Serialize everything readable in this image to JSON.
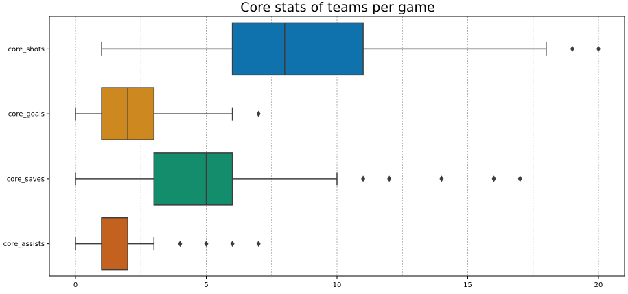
{
  "chart_data": {
    "type": "box",
    "orientation": "horizontal",
    "title": "Core stats of teams per game",
    "xlabel": "",
    "ylabel": "",
    "xlim": [
      -1,
      21
    ],
    "x_ticks": [
      0,
      5,
      10,
      15,
      20
    ],
    "x_tick_labels": [
      "0",
      "5",
      "10",
      "15",
      "20"
    ],
    "vertical_gridlines_at": [
      0,
      2.5,
      5,
      7.5,
      10,
      12.5,
      15,
      17.5,
      20
    ],
    "grid": "dotted vertical",
    "categories": [
      "core_shots",
      "core_goals",
      "core_saves",
      "core_assists"
    ],
    "series": [
      {
        "category": "core_shots",
        "color": "#0f72ad",
        "whisker_low": 1,
        "q1": 6,
        "median": 8,
        "q3": 11,
        "whisker_high": 18,
        "outliers": [
          19,
          20
        ]
      },
      {
        "category": "core_goals",
        "color": "#cd8920",
        "whisker_low": 0,
        "q1": 1,
        "median": 2,
        "q3": 3,
        "whisker_high": 6,
        "outliers": [
          7
        ]
      },
      {
        "category": "core_saves",
        "color": "#148d6d",
        "whisker_low": 0,
        "q1": 3,
        "median": 5,
        "q3": 6,
        "whisker_high": 10,
        "outliers": [
          11,
          12,
          14,
          16,
          17
        ]
      },
      {
        "category": "core_assists",
        "color": "#c3611e",
        "whisker_low": 0,
        "q1": 1,
        "median": 1,
        "q3": 2,
        "whisker_high": 3,
        "outliers": [
          4,
          5,
          6,
          7
        ]
      }
    ]
  }
}
